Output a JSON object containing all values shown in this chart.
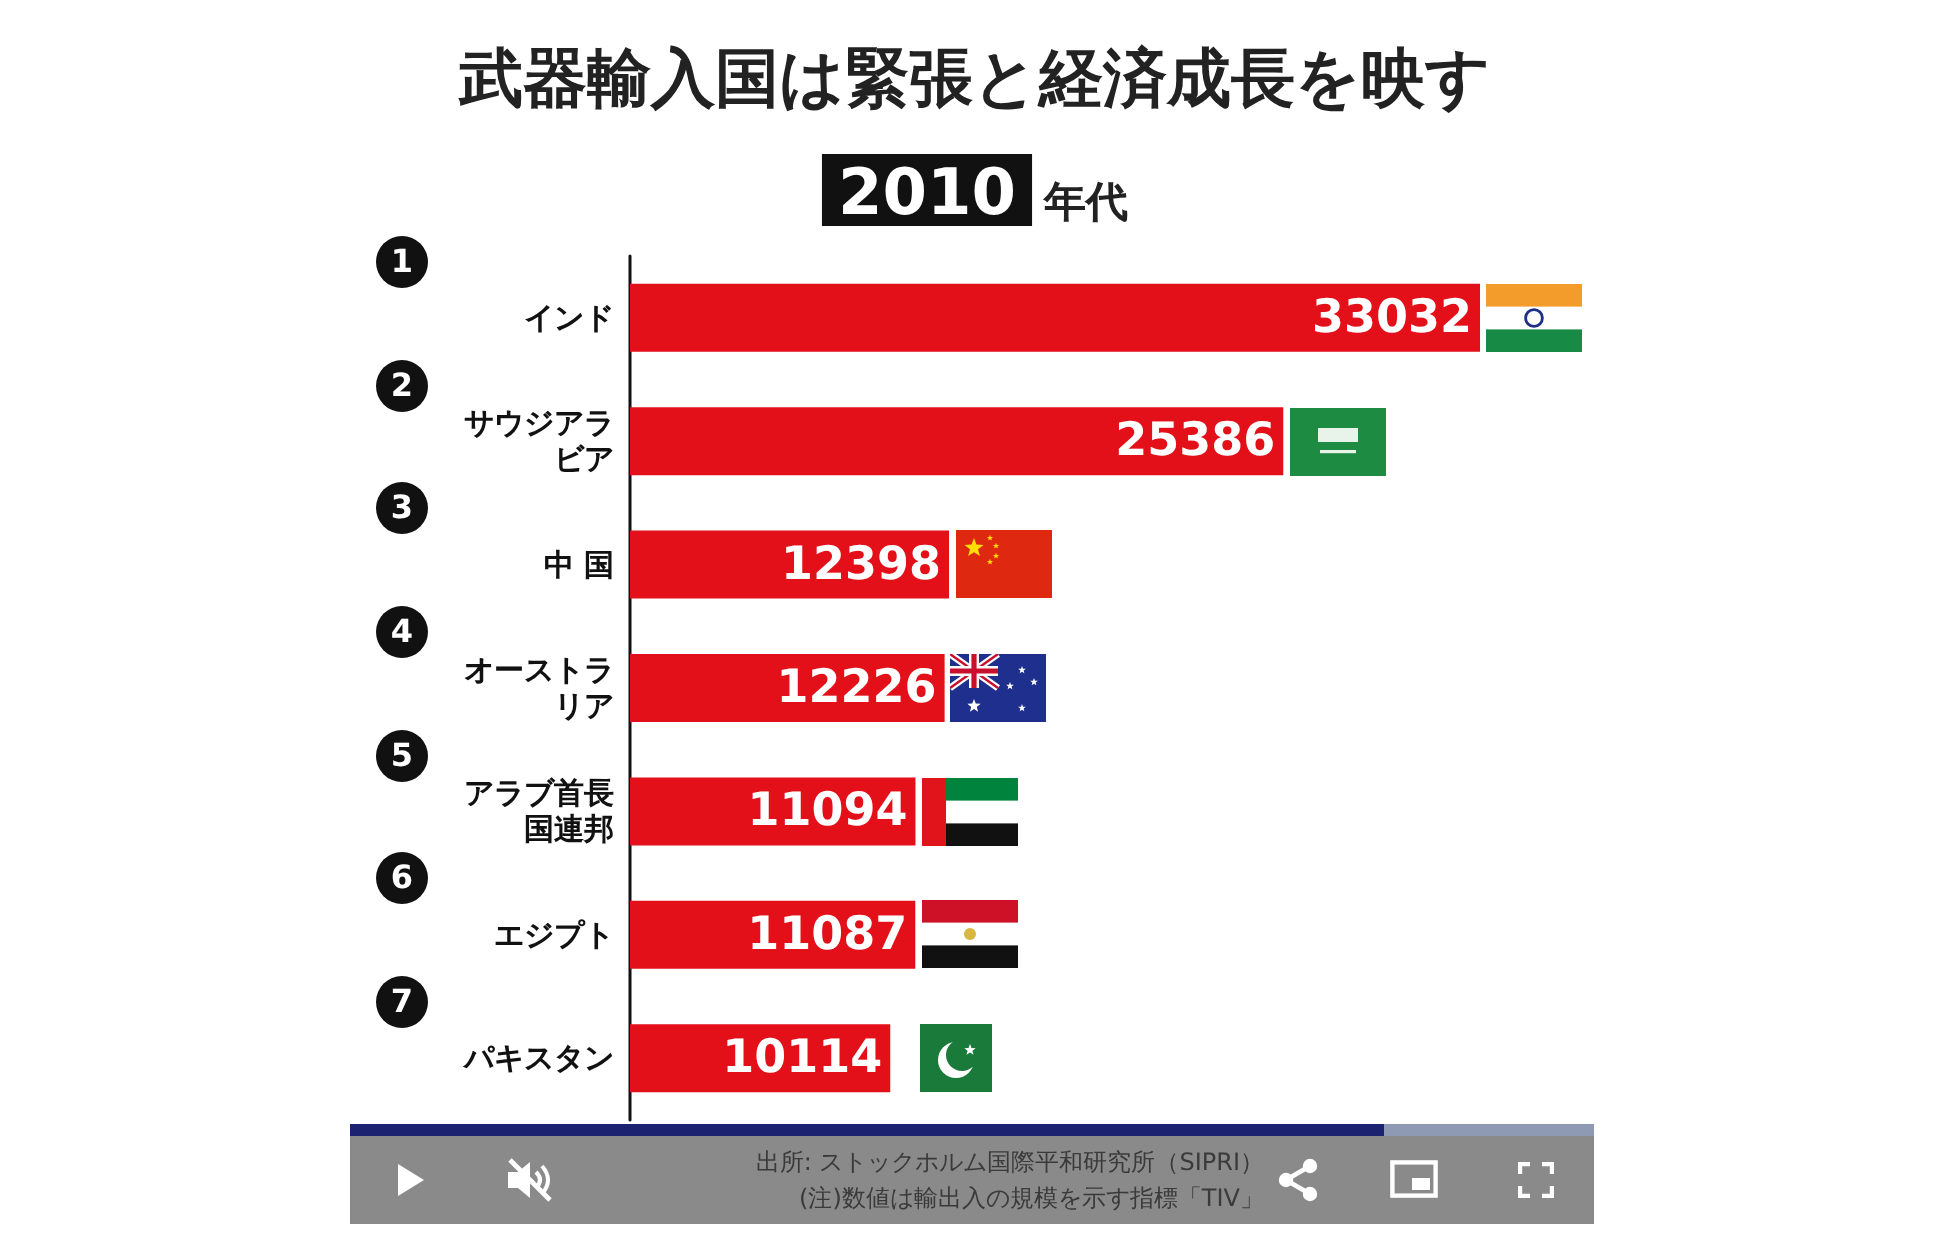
{
  "chart_data": {
    "type": "bar",
    "orientation": "horizontal",
    "title": "武器輸入国は緊張と経済成長を映す",
    "subtitle": "2010年代",
    "categories": [
      "インド",
      "サウジアラビア",
      "中 国",
      "オーストラリア",
      "アラブ首長国連邦",
      "エジプト",
      "パキスタン"
    ],
    "values": [
      33032,
      25386,
      12398,
      12226,
      11094,
      11087,
      10114
    ],
    "color": "#e3101a",
    "data_labels": true,
    "tick_labels": "y",
    "annotations": [
      "1",
      "2",
      "3",
      "4",
      "5",
      "6",
      "7",
      "出所: ストックホルム国際平和研究所（SIPRI）",
      "(注)数値は輸出入の規模を示す指標「TIV」"
    ]
  }
}
